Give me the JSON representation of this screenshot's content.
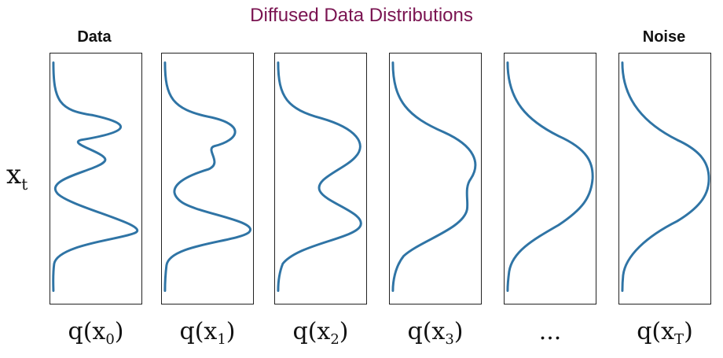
{
  "title": "Diffused Data Distributions",
  "top_labels": {
    "data": "Data",
    "noise": "Noise"
  },
  "y_axis": {
    "base": "x",
    "sub": "t"
  },
  "panels": [
    {
      "caption_base": "q(x",
      "caption_sub": "0",
      "caption_tail": ")"
    },
    {
      "caption_base": "q(x",
      "caption_sub": "1",
      "caption_tail": ")"
    },
    {
      "caption_base": "q(x",
      "caption_sub": "2",
      "caption_tail": ")"
    },
    {
      "caption_base": "q(x",
      "caption_sub": "3",
      "caption_tail": ")"
    },
    {
      "caption_text": "..."
    },
    {
      "caption_base": "q(x",
      "caption_sub": "T",
      "caption_tail": ")"
    }
  ],
  "colors": {
    "title": "#7a1451",
    "curve": "#2f74a5",
    "border": "#222222"
  }
}
